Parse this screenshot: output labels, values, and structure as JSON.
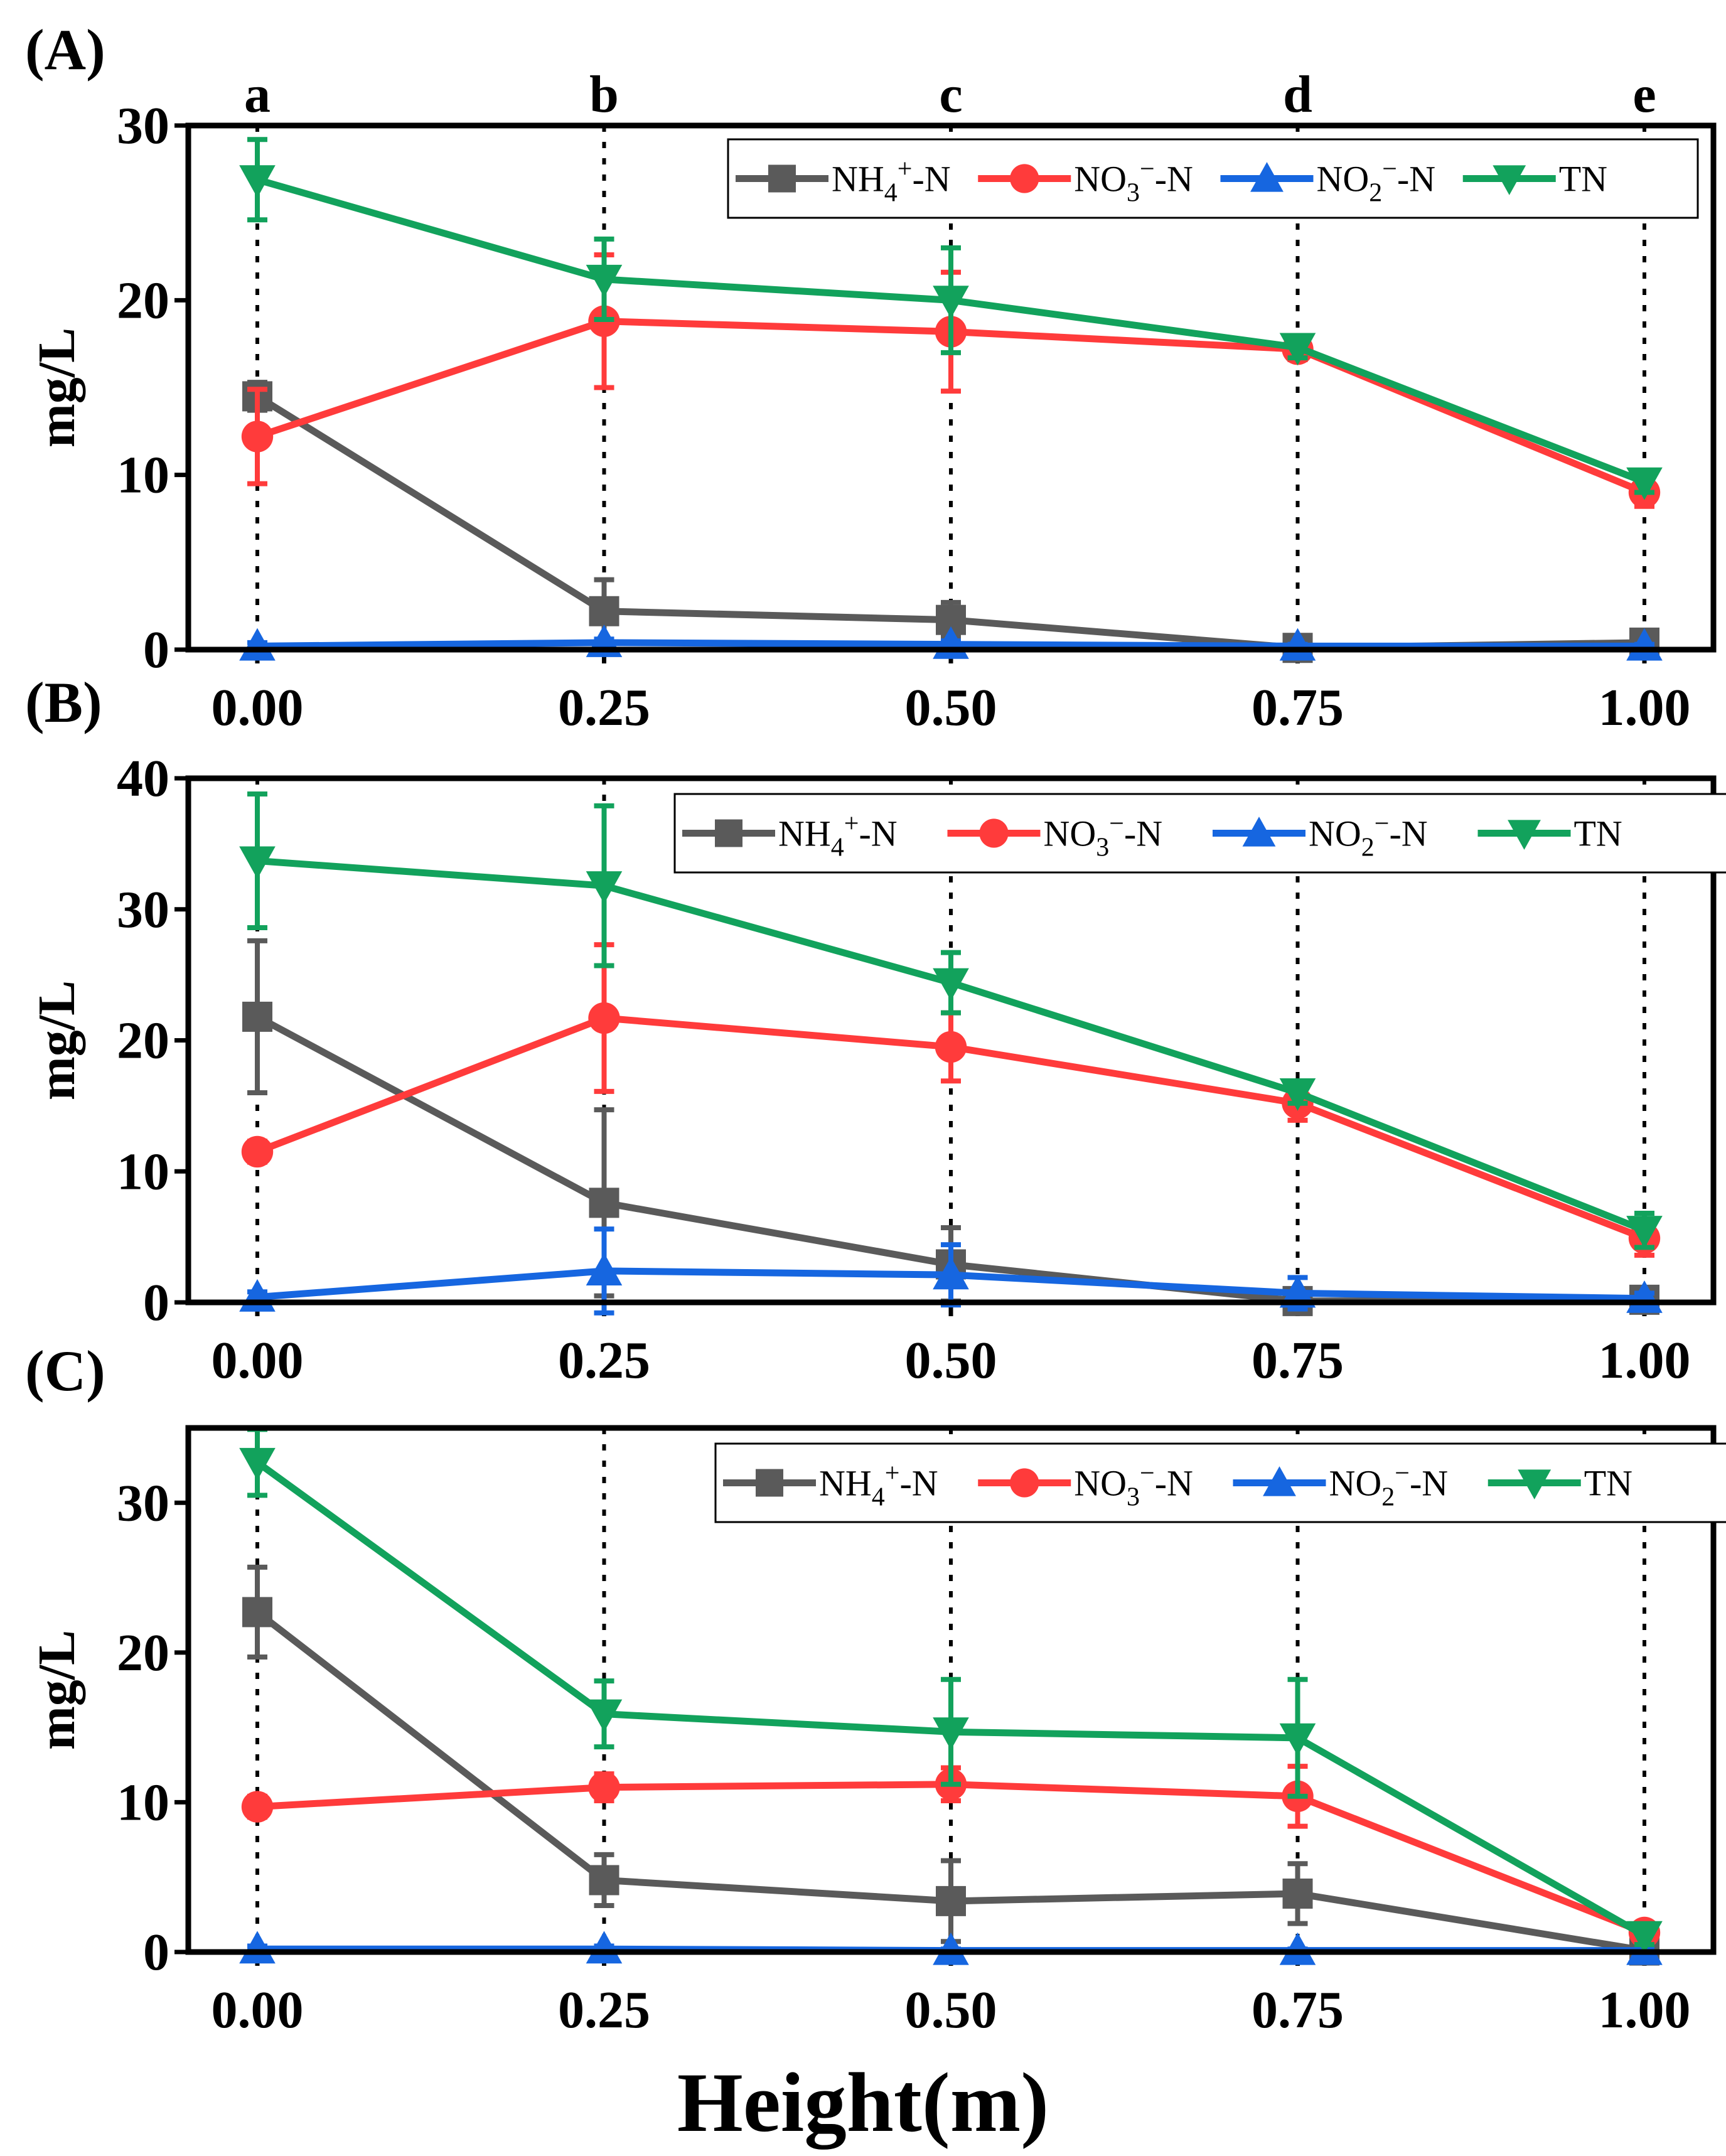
{
  "chart_data": {
    "type": "line",
    "x": [
      0.0,
      0.25,
      0.5,
      0.75,
      1.0
    ],
    "xticks": [
      "0.00",
      "0.25",
      "0.50",
      "0.75",
      "1.00"
    ],
    "xlabel": "Height(m)",
    "position_labels": [
      "a",
      "b",
      "c",
      "d",
      "e"
    ],
    "legend_position": "top-right",
    "legend": [
      {
        "key": "nh4",
        "base": "NH",
        "sub": "4",
        "sup": "+",
        "tail": "-N",
        "color": "#5a5a5a",
        "marker": "square"
      },
      {
        "key": "no3",
        "base": "NO",
        "sub": "3",
        "sup": "−",
        "tail": "-N",
        "color": "#ff3b3b",
        "marker": "circle"
      },
      {
        "key": "no2",
        "base": "NO",
        "sub": "2",
        "sup": "−",
        "tail": "-N",
        "color": "#1666e0",
        "marker": "triangle-up"
      },
      {
        "key": "tn",
        "base": "TN",
        "sub": "",
        "sup": "",
        "tail": "",
        "color": "#12a25c",
        "marker": "triangle-down"
      }
    ],
    "panels": [
      {
        "label": "(A)",
        "ylabel": "mg/L",
        "ylim": [
          0,
          30
        ],
        "yticks": [
          0,
          10,
          20,
          30
        ],
        "series": [
          {
            "key": "nh4",
            "values": [
              14.5,
              2.2,
              1.7,
              0.1,
              0.4
            ],
            "errors": [
              0.8,
              1.8,
              1.0,
              0.3,
              0.4
            ]
          },
          {
            "key": "no3",
            "values": [
              12.2,
              18.8,
              18.2,
              17.2,
              9.0
            ],
            "errors": [
              2.7,
              3.8,
              3.4,
              0.6,
              0.8
            ]
          },
          {
            "key": "no2",
            "values": [
              0.2,
              0.4,
              0.3,
              0.2,
              0.2
            ],
            "errors": [
              0.2,
              0.2,
              0.2,
              0.1,
              0.1
            ]
          },
          {
            "key": "tn",
            "values": [
              26.9,
              21.2,
              20.0,
              17.3,
              9.6
            ],
            "errors": [
              2.3,
              2.3,
              3.0,
              0.6,
              0.6
            ]
          }
        ]
      },
      {
        "label": "(B)",
        "ylabel": "mg/L",
        "ylim": [
          0,
          40
        ],
        "yticks": [
          0,
          10,
          20,
          30,
          40
        ],
        "series": [
          {
            "key": "nh4",
            "values": [
              21.8,
              7.6,
              2.9,
              0.1,
              0.2
            ],
            "errors": [
              5.8,
              7.1,
              2.8,
              0.5,
              0.4
            ]
          },
          {
            "key": "no3",
            "values": [
              11.5,
              21.7,
              19.5,
              15.2,
              4.9
            ],
            "errors": [
              0.8,
              5.6,
              2.6,
              1.3,
              1.3
            ]
          },
          {
            "key": "no2",
            "values": [
              0.4,
              2.4,
              2.1,
              0.7,
              0.3
            ],
            "errors": [
              0.4,
              3.2,
              2.3,
              1.2,
              0.4
            ]
          },
          {
            "key": "tn",
            "values": [
              33.7,
              31.8,
              24.4,
              16.0,
              5.5
            ],
            "errors": [
              5.1,
              6.1,
              2.3,
              0.8,
              1.3
            ]
          }
        ]
      },
      {
        "label": "(C)",
        "ylabel": "mg/L",
        "ylim": [
          0,
          35
        ],
        "yticks": [
          0,
          10,
          20,
          30
        ],
        "series": [
          {
            "key": "nh4",
            "values": [
              22.7,
              4.8,
              3.4,
              3.9,
              0.1
            ],
            "errors": [
              3.0,
              1.7,
              2.7,
              2.0,
              0.3
            ]
          },
          {
            "key": "no3",
            "values": [
              9.7,
              11.0,
              11.2,
              10.4,
              1.3
            ],
            "errors": [
              0.7,
              0.9,
              1.1,
              2.0,
              0.5
            ]
          },
          {
            "key": "no2",
            "values": [
              0.2,
              0.2,
              0.1,
              0.1,
              0.1
            ],
            "errors": [
              0.2,
              0.2,
              0.1,
              0.1,
              0.1
            ]
          },
          {
            "key": "tn",
            "values": [
              32.7,
              15.9,
              14.7,
              14.3,
              1.1
            ],
            "errors": [
              2.2,
              2.2,
              3.5,
              3.9,
              0.6
            ]
          }
        ]
      }
    ]
  }
}
